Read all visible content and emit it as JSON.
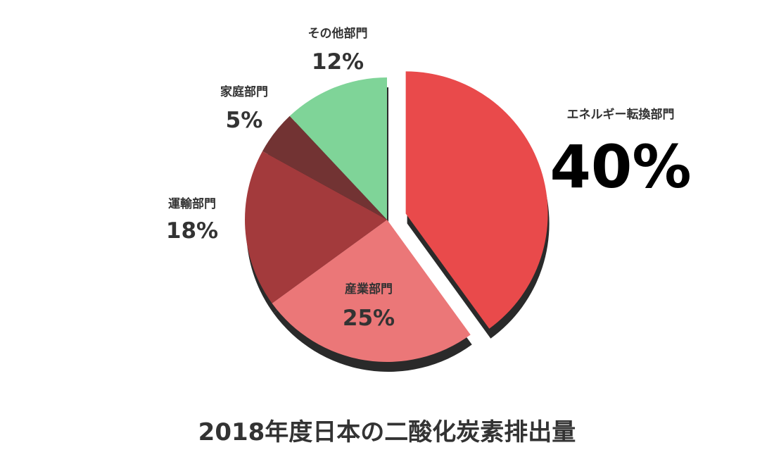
{
  "chart_data": {
    "type": "pie",
    "title": "2018年度日本の二酸化炭素排出量",
    "slices": [
      {
        "label": "エネルギー転換部門",
        "value": 40,
        "value_label": "40%",
        "color": "#e94a4b",
        "exploded": true
      },
      {
        "label": "産業部門",
        "value": 25,
        "value_label": "25%",
        "color": "#eb7778"
      },
      {
        "label": "運輸部門",
        "value": 18,
        "value_label": "18%",
        "color": "#a33a3c"
      },
      {
        "label": "家庭部門",
        "value": 5,
        "value_label": "5%",
        "color": "#723333"
      },
      {
        "label": "その他部門",
        "value": 12,
        "value_label": "12%",
        "color": "#7fd498"
      }
    ],
    "shadow_color": "#2a2a2a",
    "start": "12 o'clock",
    "direction": "clockwise"
  }
}
